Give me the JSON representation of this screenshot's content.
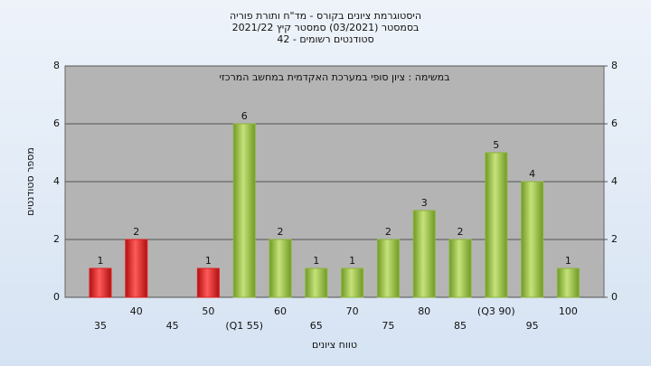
{
  "chart_data": {
    "type": "bar",
    "title_lines": [
      "היסטוגרמת ציונים בקורס - מד\"ח ותורת פוריה",
      "בסמסטר  (03/2021)  סמסטר קיץ  2021/22",
      "סטודנטים רשומים - 42"
    ],
    "annotation": "במשימה : ציון סופי במערכת האקדמית במחשב המרכזי",
    "x_label": "טווח ציונים",
    "y_label": "מספר סטודנטים",
    "categories": [
      "35",
      "40",
      "45",
      "50",
      "(Q1 55)",
      "60",
      "65",
      "70",
      "75",
      "80",
      "85",
      "(Q3 90)",
      "95",
      "100"
    ],
    "values": [
      1,
      2,
      0,
      1,
      6,
      2,
      1,
      1,
      2,
      3,
      2,
      5,
      4,
      1
    ],
    "value_labels": [
      "1",
      "2",
      null,
      "1",
      "6",
      "2",
      "1",
      "1",
      "2",
      "3",
      "2",
      "5",
      "4",
      "1"
    ],
    "colors": [
      "#e02020",
      "#e02020",
      "#e02020",
      "#e02020",
      "#8db33a",
      "#8db33a",
      "#8db33a",
      "#8db33a",
      "#8db33a",
      "#8db33a",
      "#8db33a",
      "#8db33a",
      "#8db33a",
      "#8db33a"
    ],
    "ylim": [
      0,
      8
    ],
    "yticks": [
      0,
      2,
      4,
      6,
      8
    ],
    "y2lim": [
      0,
      8
    ],
    "y2ticks": [
      0,
      2,
      4,
      6,
      8
    ],
    "grid": true
  }
}
